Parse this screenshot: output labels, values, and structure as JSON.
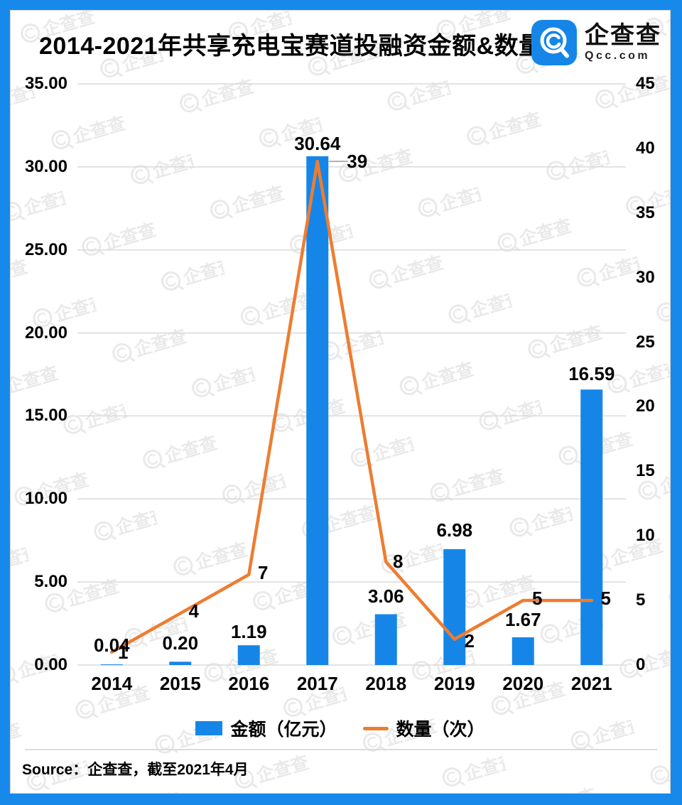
{
  "header": {
    "title": "2014-2021年共享充电宝赛道投融资金额&数量",
    "logo": {
      "brand": "企查查",
      "domain": "Qcc.com"
    }
  },
  "chart_data": {
    "type": "combo",
    "title": "2014-2021年共享充电宝赛道投融资金额&数量",
    "categories": [
      "2014",
      "2015",
      "2016",
      "2017",
      "2018",
      "2019",
      "2020",
      "2021"
    ],
    "series": [
      {
        "name": "金额（亿元）",
        "type": "bar",
        "axis": "left",
        "color": "#1586E8",
        "values": [
          0.04,
          0.2,
          1.19,
          30.64,
          3.06,
          6.98,
          1.67,
          16.59
        ],
        "labels": [
          "0.04",
          "0.20",
          "1.19",
          "30.64",
          "3.06",
          "6.98",
          "1.67",
          "16.59"
        ]
      },
      {
        "name": "数量（次）",
        "type": "line",
        "axis": "right",
        "color": "#ED7D31",
        "values": [
          1,
          4,
          7,
          39,
          8,
          2,
          5,
          5
        ],
        "labels": [
          "1",
          "4",
          "7",
          "39",
          "8",
          "2",
          "5",
          "5"
        ]
      }
    ],
    "left_axis": {
      "min": 0,
      "max": 35,
      "ticks": [
        "35.00",
        "30.00",
        "25.00",
        "20.00",
        "15.00",
        "10.00",
        "5.00",
        "0.00"
      ]
    },
    "right_axis": {
      "min": 0,
      "max": 45,
      "ticks": [
        "45",
        "40",
        "35",
        "30",
        "25",
        "20",
        "15",
        "10",
        "5",
        "0"
      ]
    },
    "grid": true,
    "legend_position": "bottom"
  },
  "legend": {
    "items": [
      {
        "label": "金额（亿元）",
        "swatch": "rect",
        "color": "#1586E8"
      },
      {
        "label": "数量（次）",
        "swatch": "line",
        "color": "#ED7D31"
      }
    ]
  },
  "footer": {
    "source": "Source：企查查，截至2021年4月"
  },
  "watermark": {
    "text": "企查查"
  },
  "colors": {
    "frame_blue": "#1789EB",
    "bar_blue": "#1586E8",
    "line_orange": "#ED7D31",
    "grid": "#DADADA",
    "leader": "#999999",
    "text": "#000000",
    "divider": "#DCDCDC"
  }
}
